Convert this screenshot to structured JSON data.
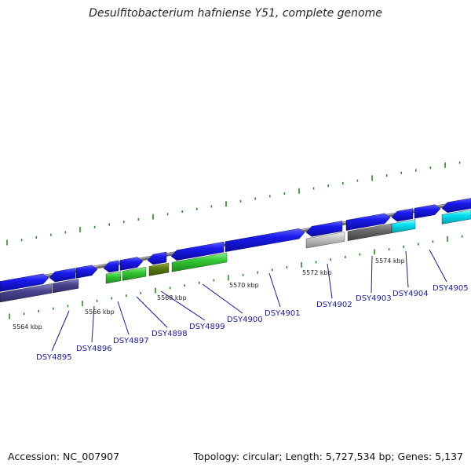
{
  "title": "Desulfitobacterium hafniense Y51, complete genome",
  "footer": {
    "accession": "Accession: NC_007907",
    "summary": "Topology: circular; Length: 5,727,534 bp; Genes: 5,137"
  },
  "colors": {
    "forward_gene": "#1010e0",
    "reverse_gene_dark": "#4a4490",
    "green_gene": "#30c030",
    "olive_gene": "#5a7a10",
    "light_gray_gene": "#c0c0c0",
    "dark_gray_gene": "#6a6a6a",
    "cyan_gene": "#00e0f0",
    "backbone": "#888888",
    "tick": "#2a8a2a",
    "label": "#1a1aa6"
  },
  "scale": {
    "labels": [
      "5564 kbp",
      "5566 kbp",
      "5568 kbp",
      "5570 kbp",
      "5572 kbp",
      "5574 kbp"
    ]
  },
  "genes": [
    {
      "id": "DSY4895"
    },
    {
      "id": "DSY4896"
    },
    {
      "id": "DSY4897"
    },
    {
      "id": "DSY4898"
    },
    {
      "id": "DSY4899"
    },
    {
      "id": "DSY4900"
    },
    {
      "id": "DSY4901"
    },
    {
      "id": "DSY4902"
    },
    {
      "id": "DSY4903"
    },
    {
      "id": "DSY4904"
    },
    {
      "id": "DSY4905"
    }
  ]
}
